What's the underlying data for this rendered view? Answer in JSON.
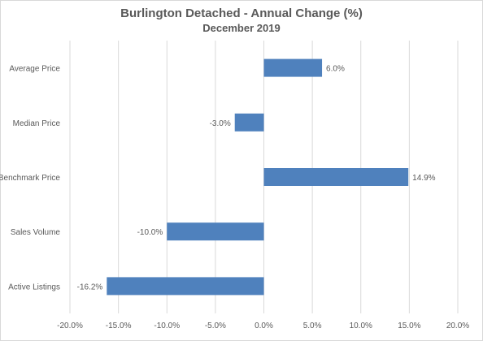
{
  "chart_data": {
    "type": "bar",
    "orientation": "horizontal",
    "title": "Burlington Detached - Annual Change (%)",
    "subtitle": "December 2019",
    "categories": [
      "Average Price",
      "Median Price",
      "Benchmark Price",
      "Sales Volume",
      "Active Listings"
    ],
    "values": [
      6.0,
      -3.0,
      14.9,
      -10.0,
      -16.2
    ],
    "data_labels": [
      "6.0%",
      "-3.0%",
      "14.9%",
      "-10.0%",
      "-16.2%"
    ],
    "xlim": [
      -20,
      20
    ],
    "x_ticks": [
      -20,
      -15,
      -10,
      -5,
      0,
      5,
      10,
      15,
      20
    ],
    "x_tick_labels": [
      "-20.0%",
      "-15.0%",
      "-10.0%",
      "-5.0%",
      "0.0%",
      "5.0%",
      "10.0%",
      "15.0%",
      "20.0%"
    ],
    "xlabel": "",
    "ylabel": "",
    "grid": "vertical",
    "legend": "none",
    "colors": {
      "bar": "#4f81bd",
      "gridline": "#d9d9d9",
      "text": "#595959"
    }
  }
}
